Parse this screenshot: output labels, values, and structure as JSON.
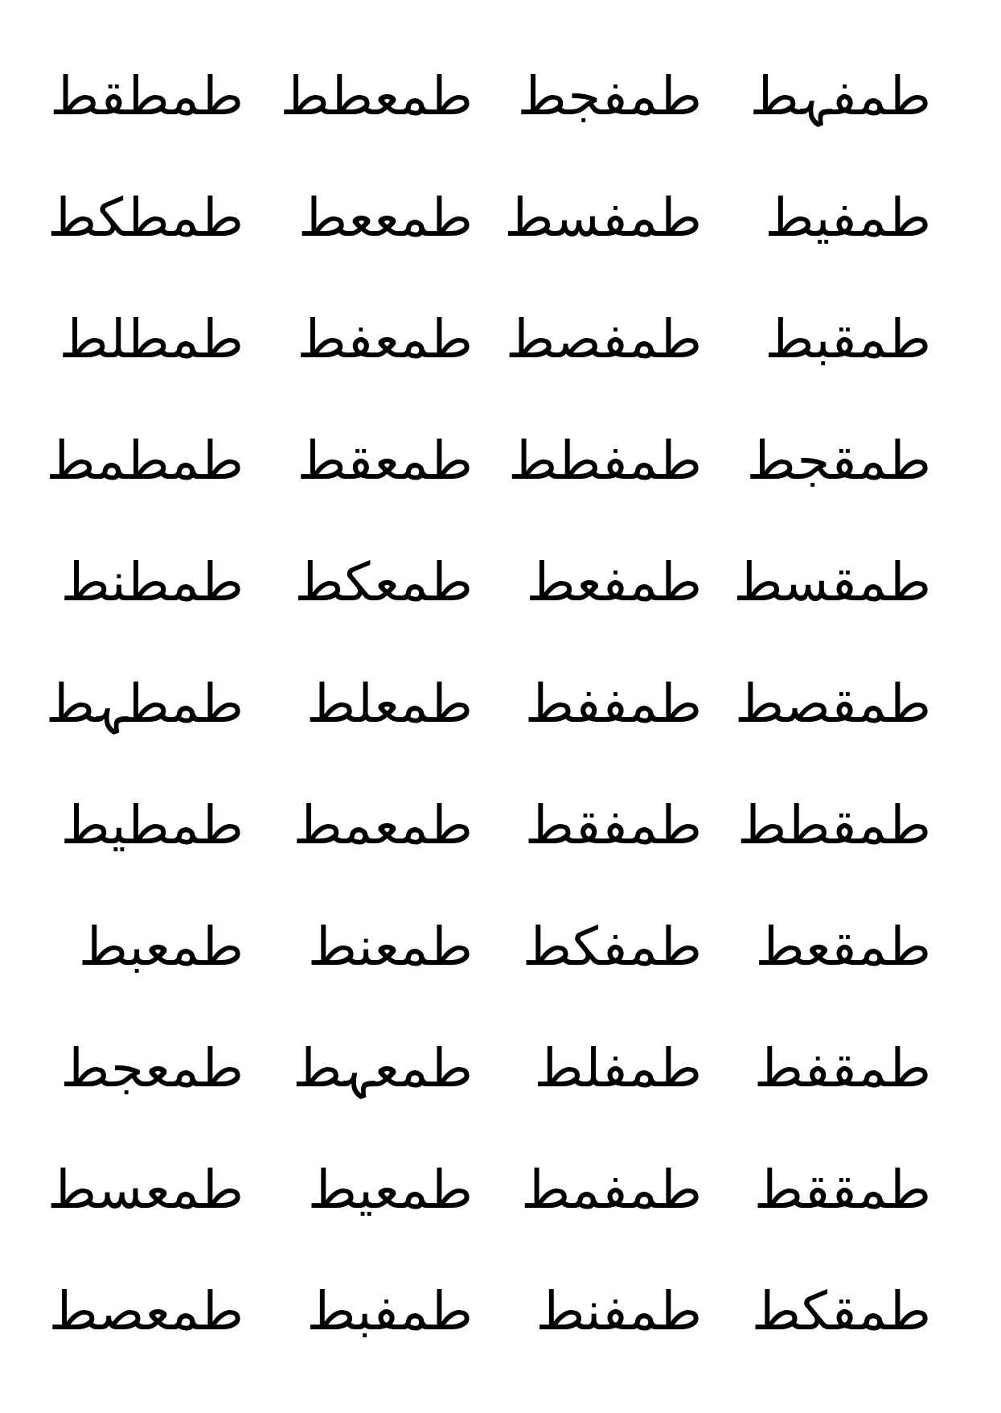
{
  "document": {
    "rows": [
      [
        "طمفہط",
        "طمفجط",
        "طمعطط",
        "طمطقط"
      ],
      [
        "طمفيط",
        "طمفسط",
        "طمععط",
        "طمطكط"
      ],
      [
        "طمقبط",
        "طمفصط",
        "طمعفط",
        "طمطلط"
      ],
      [
        "طمقجط",
        "طمفطط",
        "طمعقط",
        "طمطمط"
      ],
      [
        "طمقسط",
        "طمفعط",
        "طمعكط",
        "طمطنط"
      ],
      [
        "طمقصط",
        "طمففط",
        "طمعلط",
        "طمطہط"
      ],
      [
        "طمقطط",
        "طمفقط",
        "طمعمط",
        "طمطيط"
      ],
      [
        "طمقعط",
        "طمفكط",
        "طمعنط",
        "طمعبط"
      ],
      [
        "طمقفط",
        "طمفلط",
        "طمعہط",
        "طمعجط"
      ],
      [
        "طمققط",
        "طمفمط",
        "طمعيط",
        "طمعسط"
      ],
      [
        "طمقكط",
        "طمفنط",
        "طمفبط",
        "طمعصط"
      ]
    ]
  }
}
